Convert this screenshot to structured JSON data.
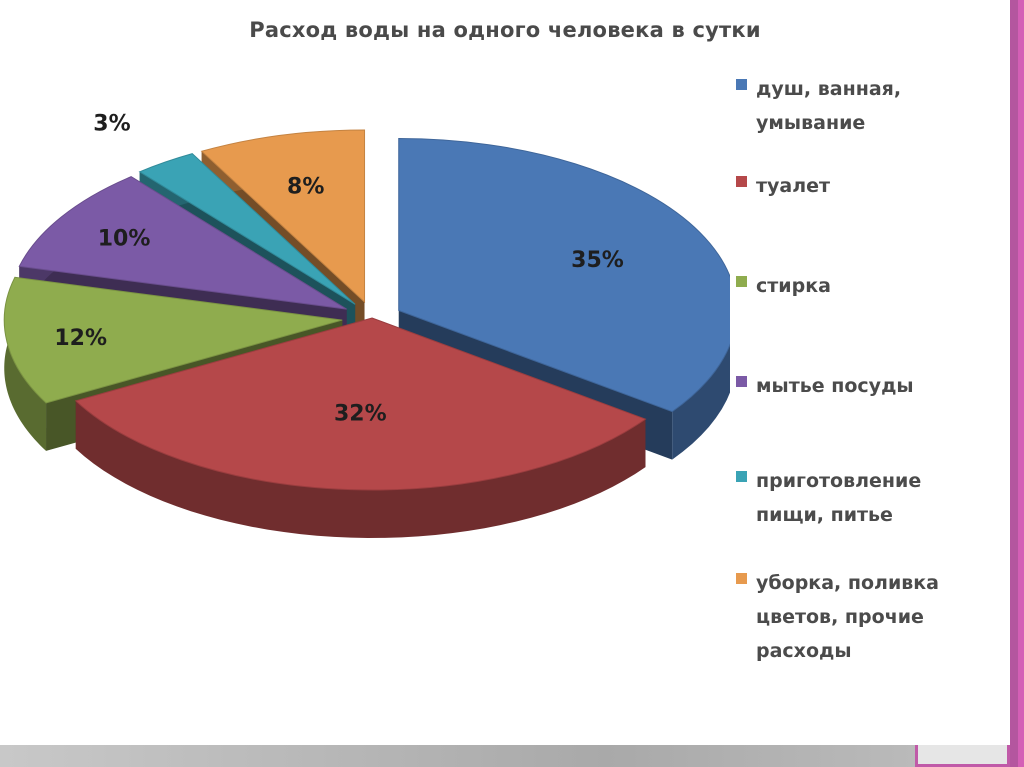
{
  "chart_data": {
    "type": "pie",
    "title": "Расход воды на одного человека в сутки",
    "unit": "%",
    "slices": [
      {
        "label": "душ, ванная, умывание",
        "value": 35,
        "value_label": "35%",
        "color": "#4a78b5",
        "exploded": true
      },
      {
        "label": "туалет",
        "value": 32,
        "value_label": "32%",
        "color": "#b5484a",
        "exploded": false
      },
      {
        "label": "стирка",
        "value": 12,
        "value_label": "12%",
        "color": "#8fac4e",
        "exploded": true
      },
      {
        "label": "мытье посуды",
        "value": 10,
        "value_label": "10%",
        "color": "#7b5aa6",
        "exploded": true
      },
      {
        "label": "приготовление пищи, питье",
        "value": 3,
        "value_label": "3%",
        "color": "#3aa3b5",
        "exploded": true
      },
      {
        "label": "уборка, поливка цветов, прочие расходы",
        "value": 8,
        "value_label": "8%",
        "color": "#e79a4e",
        "exploded": true
      }
    ],
    "legend_position": "right",
    "style": "3d-exploded"
  },
  "legend": {
    "items": [
      {
        "lines": [
          "душ, ванная,",
          "умывание"
        ]
      },
      {
        "lines": [
          "туалет"
        ]
      },
      {
        "lines": [
          "стирка"
        ]
      },
      {
        "lines": [
          "мытье посуды"
        ]
      },
      {
        "lines": [
          "приготовление",
          "пищи, питье"
        ]
      },
      {
        "lines": [
          "уборка, поливка",
          "цветов, прочие",
          "расходы"
        ]
      }
    ]
  },
  "slide": {
    "accent_color": "#c05aa8"
  }
}
